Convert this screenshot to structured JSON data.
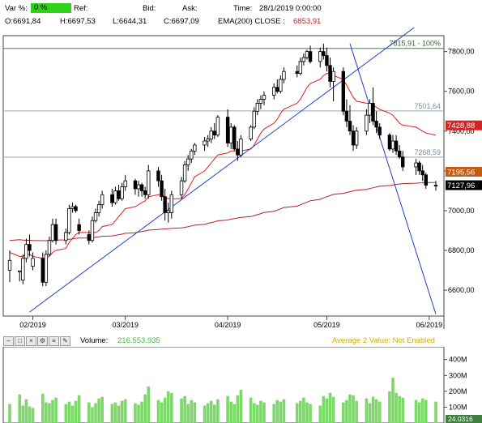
{
  "header": {
    "var_label": "Var %:",
    "var_value": "0 %",
    "ref_label": "Ref:",
    "bid_label": "Bid:",
    "ask_label": "Ask:",
    "time_label": "Time:",
    "time_value": "28/1/2019 0:00:00",
    "open": "O:6691,84",
    "high": "H:6697,53",
    "low": "L:6644,31",
    "close": "C:6697,09",
    "ema_label": "EMA(200) CLOSE :",
    "ema_value": "6853,91"
  },
  "price_chart": {
    "y_ticks": [
      "7800,00",
      "7600,00",
      "7400,00",
      "7200,00",
      "7000,00",
      "6800,00",
      "6600,00"
    ],
    "x_ticks": [
      "02/2019",
      "03/2019",
      "04/2019",
      "05/2019",
      "06/2019"
    ],
    "fib_labels": {
      "top": "7815,91 - 100%",
      "mid": "7501,64",
      "low": "7268,59"
    },
    "price_tags": {
      "red": "7428,88",
      "orange": "7195,56",
      "last": "7127,96"
    }
  },
  "volume_panel": {
    "label": "Volume:",
    "value": "216.553.935",
    "average_label": "Average 2 Value:  Not Enabled",
    "y_ticks": [
      "400M",
      "300M",
      "200M",
      "100M"
    ],
    "last_tag": "24.0316",
    "toolbar_icons": [
      "minimize-icon",
      "restore-icon",
      "close-icon",
      "settings-icon",
      "menu-icon",
      "edit-icon"
    ]
  },
  "colors": {
    "up_candle": "#ffffff",
    "down_candle": "#000000",
    "ema_short": "#e02020",
    "ema_long": "#b22222",
    "trendline": "#1f3fd0",
    "fib_line": "#3a8a3a",
    "volume_bar": "#7dd86a",
    "volume_value": "#3cbf3c",
    "average_label": "#d4b000",
    "price_tag_red": "#d42323",
    "price_tag_orange": "#c55a11",
    "var_badge": "#2fd11b"
  },
  "chart_data": {
    "type": "candlestick",
    "x": [
      "2019-01-25",
      "2019-01-28",
      "2019-01-29",
      "2019-01-30",
      "2019-01-31",
      "2019-02-01",
      "2019-02-04",
      "2019-02-05",
      "2019-02-06",
      "2019-02-07",
      "2019-02-08",
      "2019-02-11",
      "2019-02-12",
      "2019-02-13",
      "2019-02-14",
      "2019-02-15",
      "2019-02-18",
      "2019-02-19",
      "2019-02-20",
      "2019-02-21",
      "2019-02-22",
      "2019-02-25",
      "2019-02-26",
      "2019-02-27",
      "2019-02-28",
      "2019-03-01",
      "2019-03-04",
      "2019-03-05",
      "2019-03-06",
      "2019-03-07",
      "2019-03-08",
      "2019-03-11",
      "2019-03-12",
      "2019-03-13",
      "2019-03-14",
      "2019-03-15",
      "2019-03-18",
      "2019-03-19",
      "2019-03-20",
      "2019-03-21",
      "2019-03-22",
      "2019-03-25",
      "2019-03-26",
      "2019-03-27",
      "2019-03-28",
      "2019-03-29",
      "2019-04-01",
      "2019-04-02",
      "2019-04-03",
      "2019-04-04",
      "2019-04-05",
      "2019-04-08",
      "2019-04-09",
      "2019-04-10",
      "2019-04-11",
      "2019-04-12",
      "2019-04-15",
      "2019-04-16",
      "2019-04-17",
      "2019-04-18",
      "2019-04-22",
      "2019-04-23",
      "2019-04-24",
      "2019-04-25",
      "2019-04-26",
      "2019-04-29",
      "2019-04-30",
      "2019-05-01",
      "2019-05-02",
      "2019-05-03",
      "2019-05-06",
      "2019-05-07",
      "2019-05-08",
      "2019-05-09",
      "2019-05-10",
      "2019-05-13",
      "2019-05-14",
      "2019-05-15",
      "2019-05-16",
      "2019-05-17",
      "2019-05-20",
      "2019-05-21",
      "2019-05-22",
      "2019-05-23",
      "2019-05-24",
      "2019-05-28",
      "2019-05-29",
      "2019-05-30",
      "2019-05-31",
      "2019-06-03"
    ],
    "ohlc": [
      [
        6700,
        6800,
        6640,
        6750
      ],
      [
        6691.84,
        6697.53,
        6644.31,
        6697.09
      ],
      [
        6650,
        6780,
        6630,
        6760
      ],
      [
        6760,
        6860,
        6740,
        6830
      ],
      [
        6830,
        6880,
        6770,
        6800
      ],
      [
        6720,
        6790,
        6700,
        6760
      ],
      [
        6760,
        6790,
        6620,
        6640
      ],
      [
        6640,
        6800,
        6620,
        6780
      ],
      [
        6780,
        6870,
        6770,
        6850
      ],
      [
        6850,
        6960,
        6840,
        6930
      ],
      [
        6930,
        6960,
        6830,
        6850
      ],
      [
        6850,
        6910,
        6830,
        6890
      ],
      [
        6890,
        7030,
        6880,
        7010
      ],
      [
        7010,
        7040,
        6990,
        7020
      ],
      [
        7020,
        7030,
        6990,
        7000
      ],
      [
        6930,
        6960,
        6880,
        6900
      ],
      [
        6880,
        6900,
        6830,
        6850
      ],
      [
        6850,
        6970,
        6840,
        6950
      ],
      [
        6950,
        7010,
        6940,
        6990
      ],
      [
        6990,
        7050,
        6970,
        7030
      ],
      [
        7030,
        7100,
        7010,
        7080
      ],
      [
        7080,
        7110,
        7020,
        7040
      ],
      [
        7040,
        7120,
        7030,
        7100
      ],
      [
        7100,
        7130,
        7050,
        7060
      ],
      [
        7060,
        7140,
        7050,
        7120
      ],
      [
        7120,
        7180,
        7100,
        7150
      ],
      [
        7150,
        7160,
        7080,
        7110
      ],
      [
        7110,
        7150,
        7070,
        7130
      ],
      [
        7130,
        7140,
        7070,
        7100
      ],
      [
        7100,
        7120,
        7060,
        7080
      ],
      [
        7080,
        7230,
        7060,
        7200
      ],
      [
        7200,
        7220,
        7120,
        7150
      ],
      [
        7150,
        7180,
        7050,
        7070
      ],
      [
        7070,
        7110,
        6950,
        6990
      ],
      [
        6990,
        7040,
        6940,
        7000
      ],
      [
        6990,
        7100,
        6960,
        7080
      ],
      [
        7080,
        7170,
        7060,
        7150
      ],
      [
        7150,
        7250,
        7140,
        7230
      ],
      [
        7230,
        7280,
        7200,
        7260
      ],
      [
        7260,
        7310,
        7240,
        7300
      ],
      [
        7300,
        7340,
        7280,
        7330
      ],
      [
        7330,
        7370,
        7300,
        7350
      ],
      [
        7350,
        7380,
        7320,
        7360
      ],
      [
        7360,
        7420,
        7340,
        7400
      ],
      [
        7400,
        7440,
        7360,
        7380
      ],
      [
        7380,
        7480,
        7370,
        7470
      ],
      [
        7470,
        7510,
        7320,
        7340
      ],
      [
        7340,
        7440,
        7310,
        7420
      ],
      [
        7420,
        7430,
        7300,
        7310
      ],
      [
        7310,
        7350,
        7250,
        7280
      ],
      [
        7280,
        7380,
        7270,
        7360
      ],
      [
        7360,
        7430,
        7350,
        7420
      ],
      [
        7420,
        7520,
        7410,
        7500
      ],
      [
        7500,
        7560,
        7480,
        7540
      ],
      [
        7540,
        7580,
        7510,
        7560
      ],
      [
        7560,
        7600,
        7530,
        7580
      ],
      [
        7580,
        7640,
        7560,
        7620
      ],
      [
        7620,
        7660,
        7590,
        7600
      ],
      [
        7600,
        7680,
        7590,
        7660
      ],
      [
        7660,
        7720,
        7640,
        7700
      ],
      [
        7700,
        7730,
        7670,
        7690
      ],
      [
        7690,
        7770,
        7680,
        7750
      ],
      [
        7750,
        7790,
        7730,
        7770
      ],
      [
        7770,
        7810,
        7760,
        7800
      ],
      [
        7800,
        7830,
        7740,
        7750
      ],
      [
        7750,
        7820,
        7720,
        7800
      ],
      [
        7800,
        7840,
        7760,
        7780
      ],
      [
        7780,
        7820,
        7700,
        7730
      ],
      [
        7730,
        7770,
        7620,
        7650
      ],
      [
        7650,
        7720,
        7550,
        7700
      ],
      [
        7700,
        7720,
        7480,
        7500
      ],
      [
        7500,
        7560,
        7420,
        7450
      ],
      [
        7450,
        7530,
        7380,
        7400
      ],
      [
        7400,
        7430,
        7300,
        7330
      ],
      [
        7330,
        7420,
        7310,
        7400
      ],
      [
        7400,
        7510,
        7380,
        7480
      ],
      [
        7480,
        7560,
        7440,
        7540
      ],
      [
        7540,
        7620,
        7430,
        7450
      ],
      [
        7450,
        7500,
        7390,
        7420
      ],
      [
        7420,
        7440,
        7360,
        7380
      ],
      [
        7380,
        7390,
        7300,
        7310
      ],
      [
        7310,
        7380,
        7290,
        7350
      ],
      [
        7350,
        7380,
        7280,
        7300
      ],
      [
        7300,
        7330,
        7260,
        7270
      ],
      [
        7270,
        7300,
        7200,
        7220
      ],
      [
        7220,
        7260,
        7180,
        7240
      ],
      [
        7240,
        7250,
        7180,
        7200
      ],
      [
        7200,
        7230,
        7150,
        7180
      ],
      [
        7180,
        7190,
        7110,
        7128
      ],
      [
        7128,
        7150,
        7100,
        7127.96
      ]
    ],
    "volume_millions": [
      120,
      180,
      110,
      150,
      105,
      95,
      185,
      130,
      125,
      145,
      160,
      120,
      135,
      110,
      140,
      175,
      130,
      100,
      125,
      155,
      165,
      120,
      130,
      110,
      140,
      150,
      125,
      115,
      135,
      180,
      230,
      145,
      130,
      160,
      200,
      190,
      155,
      170,
      120,
      145,
      130,
      110,
      125,
      140,
      115,
      150,
      170,
      135,
      120,
      175,
      210,
      160,
      125,
      115,
      140,
      130,
      120,
      145,
      135,
      150,
      125,
      140,
      160,
      130,
      120,
      110,
      170,
      155,
      190,
      165,
      130,
      145,
      180,
      175,
      140,
      155,
      125,
      165,
      150,
      135,
      200,
      285,
      190,
      170,
      160,
      145,
      130,
      155,
      145,
      135
    ],
    "ema_short": [
      6790,
      6770,
      6770,
      6780,
      6780,
      6770,
      6760,
      6760,
      6770,
      6790,
      6800,
      6810,
      6840,
      6860,
      6880,
      6890,
      6890,
      6890,
      6890,
      6900,
      6920,
      6930,
      6950,
      6970,
      6990,
      7010,
      7020,
      7030,
      7040,
      7050,
      7070,
      7080,
      7080,
      7070,
      7060,
      7060,
      7060,
      7080,
      7110,
      7140,
      7170,
      7200,
      7220,
      7240,
      7260,
      7280,
      7290,
      7300,
      7300,
      7300,
      7300,
      7310,
      7330,
      7360,
      7390,
      7410,
      7440,
      7460,
      7490,
      7510,
      7540,
      7560,
      7590,
      7620,
      7640,
      7660,
      7680,
      7690,
      7690,
      7680,
      7660,
      7630,
      7600,
      7570,
      7550,
      7540,
      7540,
      7530,
      7520,
      7510,
      7490,
      7480,
      7460,
      7440,
      7430,
      7420,
      7410,
      7400,
      7390,
      7380
    ],
    "ema_long": [
      6850,
      6853.91,
      6852,
      6851,
      6851,
      6850,
      6849,
      6849,
      6850,
      6851,
      6852,
      6853,
      6856,
      6858,
      6861,
      6862,
      6863,
      6864,
      6866,
      6868,
      6871,
      6873,
      6876,
      6879,
      6882,
      6886,
      6889,
      6892,
      6895,
      6898,
      6902,
      6905,
      6907,
      6908,
      6909,
      6911,
      6913,
      6916,
      6919,
      6923,
      6927,
      6931,
      6936,
      6940,
      6944,
      6949,
      6953,
      6957,
      6960,
      6963,
      6966,
      6970,
      6975,
      6980,
      6985,
      6991,
      6997,
      7003,
      7009,
      7016,
      7022,
      7029,
      7036,
      7043,
      7050,
      7057,
      7064,
      7070,
      7076,
      7082,
      7087,
      7091,
      7095,
      7099,
      7103,
      7107,
      7111,
      7115,
      7119,
      7123,
      7126,
      7129,
      7132,
      7134,
      7136,
      7138,
      7139,
      7140,
      7141,
      7141
    ],
    "trendlines": [
      {
        "from": [
          "2019-01-31",
          6490
        ],
        "to": [
          "2019-05-29",
          7940
        ]
      },
      {
        "from": [
          "2019-05-08",
          7840
        ],
        "to": [
          "2019-06-03",
          6480
        ]
      }
    ],
    "horizontal_levels": [
      7815.91,
      7501.64,
      7268.59
    ],
    "y_range": [
      6470,
      7880
    ],
    "volume_y_range": [
      0,
      460
    ],
    "grid": false
  }
}
